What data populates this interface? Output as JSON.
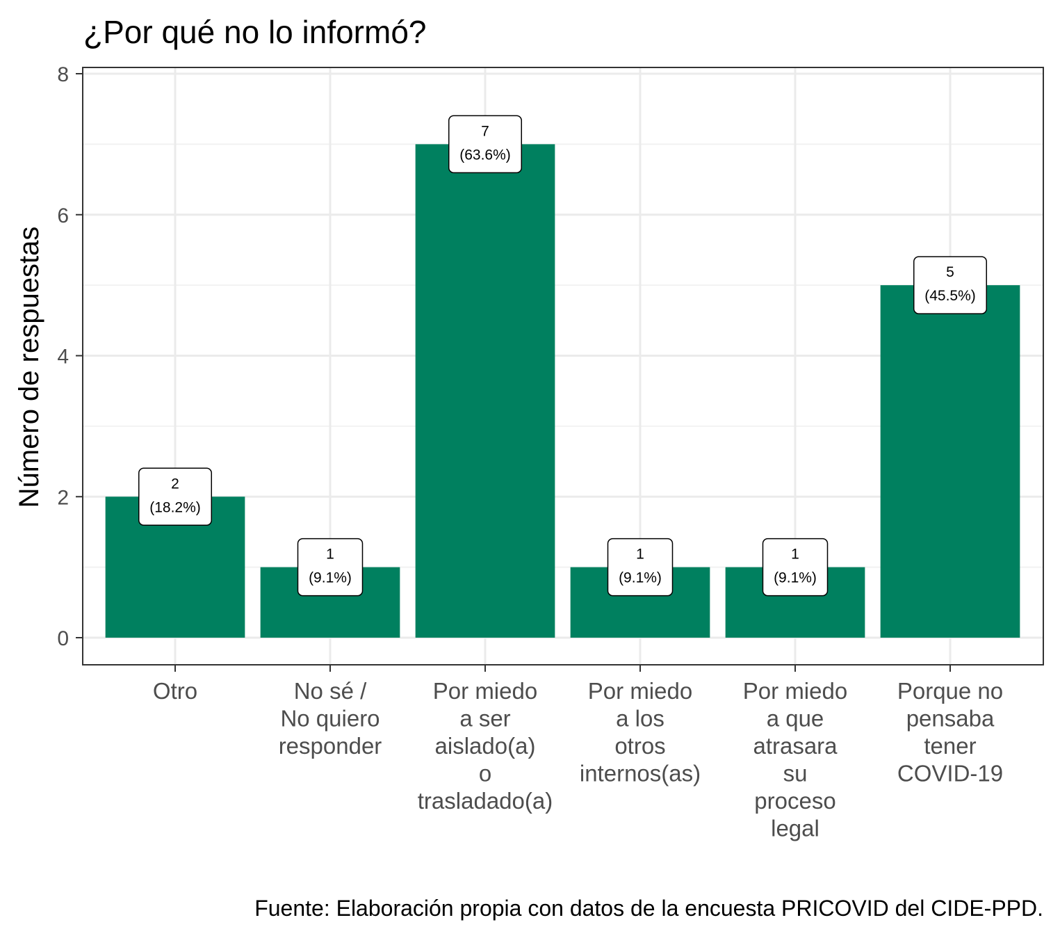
{
  "chart_data": {
    "type": "bar",
    "title": "¿Por qué no lo informó?",
    "ylabel": "Número de respuestas",
    "xlabel": "",
    "categories": [
      [
        "Otro"
      ],
      [
        "No sé /",
        "No quiero",
        "responder"
      ],
      [
        "Por miedo",
        "a ser",
        "aislado(a)",
        "o",
        "trasladado(a)"
      ],
      [
        "Por miedo",
        "a los",
        "otros",
        "internos(as)"
      ],
      [
        "Por miedo",
        "a que",
        "atrasara",
        "su",
        "proceso",
        "legal"
      ],
      [
        "Porque no",
        "pensaba",
        "tener",
        "COVID-19"
      ]
    ],
    "values": [
      2,
      1,
      7,
      1,
      1,
      5
    ],
    "labels": [
      [
        "2",
        "(18.2%)"
      ],
      [
        "1",
        "(9.1%)"
      ],
      [
        "7",
        "(63.6%)"
      ],
      [
        "1",
        "(9.1%)"
      ],
      [
        "1",
        "(9.1%)"
      ],
      [
        "5",
        "(45.5%)"
      ]
    ],
    "ylim": [
      0,
      8
    ],
    "yticks": [
      0,
      2,
      4,
      6,
      8
    ],
    "grid": true,
    "bar_color": "#00805f",
    "caption": "Fuente: Elaboración propia con datos de la encuesta PRICOVID del CIDE-PPD."
  }
}
